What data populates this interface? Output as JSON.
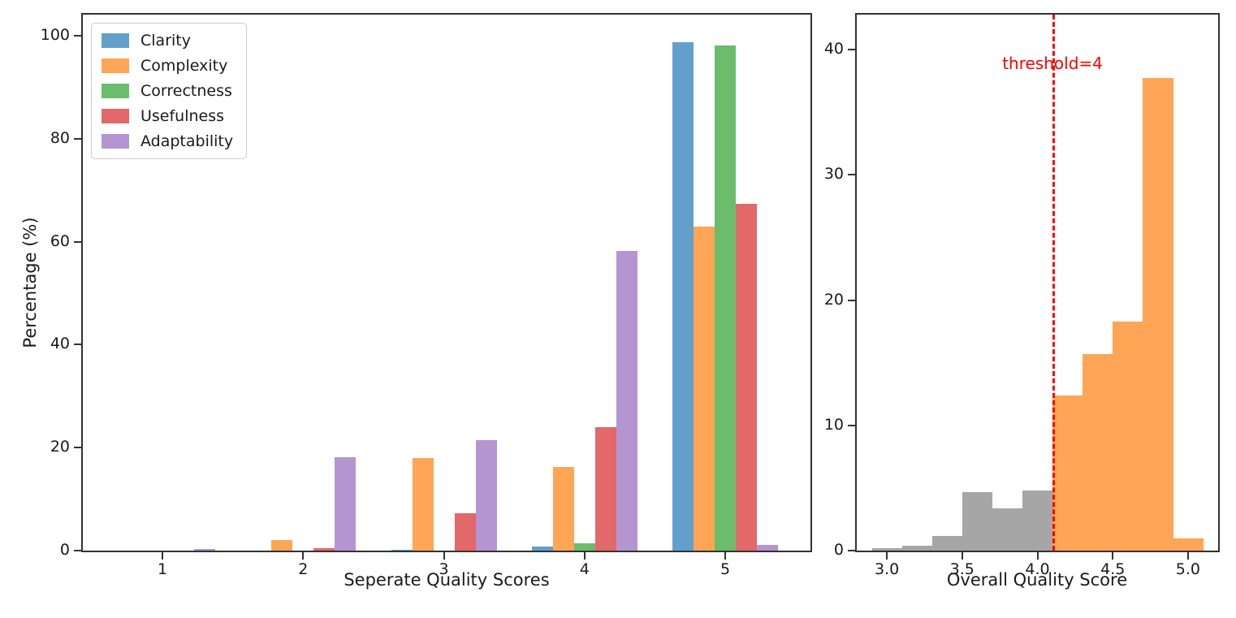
{
  "chart_data": [
    {
      "type": "bar",
      "title": "",
      "xlabel": "Seperate Quality Scores",
      "ylabel": "Percentage (%)",
      "categories": [
        "1",
        "2",
        "3",
        "4",
        "5"
      ],
      "series": [
        {
          "name": "Clarity",
          "color": "#62A0CB",
          "values": [
            0,
            0,
            0.2,
            0.8,
            98.8
          ]
        },
        {
          "name": "Complexity",
          "color": "#FFA556",
          "values": [
            0,
            2.1,
            18.0,
            16.3,
            63.0
          ]
        },
        {
          "name": "Correctness",
          "color": "#6BBD6B",
          "values": [
            0,
            0,
            0,
            1.5,
            98.1
          ]
        },
        {
          "name": "Usefulness",
          "color": "#E26869",
          "values": [
            0,
            0.5,
            7.3,
            23.9,
            67.4
          ]
        },
        {
          "name": "Adaptability",
          "color": "#B495D1",
          "values": [
            0.3,
            18.2,
            21.5,
            58.2,
            1.1
          ]
        }
      ],
      "ylim": [
        0,
        104
      ],
      "ytick_labels": [
        "0",
        "20",
        "40",
        "60",
        "80",
        "100"
      ],
      "yticks": [
        0,
        20,
        40,
        60,
        80,
        100
      ],
      "legend_position": "upper left",
      "grid": false
    },
    {
      "type": "histogram",
      "title": "",
      "xlabel": "Overall Quality Score",
      "ylabel": "",
      "bin_width": 0.2,
      "segments": [
        {
          "name": "below-threshold",
          "color": "#A6A6A6",
          "bin_start": 2.9,
          "values": [
            0.2,
            0.4,
            1.2,
            4.7,
            3.4,
            4.8
          ]
        },
        {
          "name": "above-threshold",
          "color": "#FFA556",
          "bin_start": 4.1,
          "values": [
            12.4,
            15.7,
            18.3,
            37.7,
            1.0
          ]
        }
      ],
      "threshold_line": {
        "x": 4.1,
        "label": "threshold=4",
        "color": "#ff0000",
        "style": "dashed"
      },
      "xticks": [
        3.0,
        3.5,
        4.0,
        4.5,
        5.0
      ],
      "xtick_labels": [
        "3.0",
        "3.5",
        "4.0",
        "4.5",
        "5.0"
      ],
      "yticks": [
        0,
        10,
        20,
        30,
        40
      ],
      "ytick_labels": [
        "0",
        "10",
        "20",
        "30",
        "40"
      ],
      "xlim": [
        2.8,
        5.2
      ],
      "ylim": [
        0,
        43
      ],
      "grid": false
    }
  ]
}
